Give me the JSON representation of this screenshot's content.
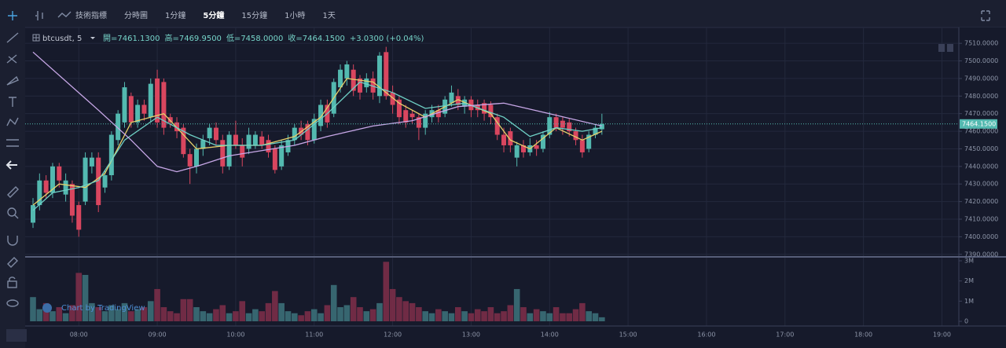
{
  "chart_data": {
    "type": "candlestick",
    "symbol": "btcusdt, 5",
    "toolbar": [
      "技術指標",
      "分時圖",
      "1分鐘",
      "5分鐘",
      "15分鐘",
      "1小時",
      "1天"
    ],
    "active_interval": "5分鐘",
    "legend_values": [
      "開=7461.1300",
      "高=7469.9500",
      "低=7458.0000",
      "收=7464.1500",
      "+3.0300 (+0.04%)"
    ],
    "watermark": "Chart by TradingView",
    "x_tick_labels": [
      "08:00",
      "09:00",
      "10:00",
      "11:00",
      "12:00",
      "13:00",
      "14:00",
      "15:00",
      "16:00",
      "17:00",
      "18:00",
      "19:00"
    ],
    "ylim": [
      7389,
      7519
    ],
    "yticks": [
      {
        "value": 7390,
        "label": "7390.0000"
      },
      {
        "value": 7400,
        "label": "7400.0000"
      },
      {
        "value": 7410,
        "label": "7410.0000"
      },
      {
        "value": 7420,
        "label": "7420.0000"
      },
      {
        "value": 7430,
        "label": "7430.0000"
      },
      {
        "value": 7440,
        "label": "7440.0000"
      },
      {
        "value": 7450,
        "label": "7450.0000"
      },
      {
        "value": 7460,
        "label": "7460.0000"
      },
      {
        "value": 7470,
        "label": "7470.0000"
      },
      {
        "value": 7480,
        "label": "7480.0000"
      },
      {
        "value": 7490,
        "label": "7490.0000"
      },
      {
        "value": 7500,
        "label": "7500.0000"
      },
      {
        "value": 7510,
        "label": "7510.0000"
      }
    ],
    "last_price": {
      "value": 7464.15,
      "label": "7464.1500"
    },
    "up_color": "#53b9b0",
    "down_color": "#d9465f",
    "ohlc": [
      [
        7408,
        7422,
        7405,
        7418
      ],
      [
        7418,
        7436,
        7415,
        7432
      ],
      [
        7432,
        7435,
        7422,
        7425
      ],
      [
        7425,
        7442,
        7422,
        7440
      ],
      [
        7440,
        7442,
        7428,
        7432
      ],
      [
        7424,
        7436,
        7420,
        7432
      ],
      [
        7430,
        7432,
        7408,
        7412
      ],
      [
        7418,
        7420,
        7400,
        7404
      ],
      [
        7420,
        7448,
        7418,
        7445
      ],
      [
        7440,
        7448,
        7436,
        7445
      ],
      [
        7445,
        7448,
        7414,
        7418
      ],
      [
        7428,
        7438,
        7425,
        7435
      ],
      [
        7435,
        7460,
        7432,
        7458
      ],
      [
        7455,
        7472,
        7452,
        7470
      ],
      [
        7465,
        7488,
        7462,
        7485
      ],
      [
        7480,
        7482,
        7462,
        7465
      ],
      [
        7465,
        7478,
        7462,
        7475
      ],
      [
        7475,
        7478,
        7466,
        7470
      ],
      [
        7468,
        7490,
        7465,
        7487
      ],
      [
        7490,
        7495,
        7462,
        7465
      ],
      [
        7488,
        7490,
        7458,
        7462
      ],
      [
        7468,
        7470,
        7462,
        7465
      ],
      [
        7465,
        7468,
        7456,
        7460
      ],
      [
        7462,
        7464,
        7445,
        7447
      ],
      [
        7447,
        7450,
        7430,
        7440
      ],
      [
        7440,
        7453,
        7436,
        7450
      ],
      [
        7450,
        7458,
        7446,
        7455
      ],
      [
        7456,
        7464,
        7452,
        7462
      ],
      [
        7462,
        7465,
        7452,
        7455
      ],
      [
        7455,
        7458,
        7436,
        7440
      ],
      [
        7440,
        7460,
        7438,
        7458
      ],
      [
        7458,
        7466,
        7450,
        7452
      ],
      [
        7452,
        7456,
        7440,
        7445
      ],
      [
        7450,
        7462,
        7447,
        7458
      ],
      [
        7452,
        7460,
        7450,
        7458
      ],
      [
        7457,
        7460,
        7450,
        7452
      ],
      [
        7455,
        7458,
        7445,
        7448
      ],
      [
        7450,
        7452,
        7436,
        7438
      ],
      [
        7440,
        7455,
        7438,
        7452
      ],
      [
        7448,
        7458,
        7446,
        7455
      ],
      [
        7455,
        7464,
        7452,
        7462
      ],
      [
        7462,
        7466,
        7455,
        7458
      ],
      [
        7464,
        7466,
        7452,
        7455
      ],
      [
        7455,
        7470,
        7453,
        7467
      ],
      [
        7463,
        7478,
        7460,
        7475
      ],
      [
        7475,
        7478,
        7462,
        7465
      ],
      [
        7470,
        7490,
        7468,
        7488
      ],
      [
        7485,
        7498,
        7482,
        7495
      ],
      [
        7490,
        7500,
        7486,
        7498
      ],
      [
        7495,
        7498,
        7480,
        7483
      ],
      [
        7490,
        7492,
        7478,
        7482
      ],
      [
        7485,
        7493,
        7482,
        7490
      ],
      [
        7490,
        7494,
        7478,
        7482
      ],
      [
        7480,
        7505,
        7476,
        7503
      ],
      [
        7505,
        7508,
        7478,
        7480
      ],
      [
        7482,
        7486,
        7470,
        7475
      ],
      [
        7478,
        7480,
        7464,
        7468
      ],
      [
        7472,
        7475,
        7462,
        7465
      ],
      [
        7470,
        7472,
        7464,
        7468
      ],
      [
        7468,
        7470,
        7455,
        7462
      ],
      [
        7462,
        7472,
        7458,
        7470
      ],
      [
        7468,
        7475,
        7465,
        7472
      ],
      [
        7472,
        7475,
        7465,
        7468
      ],
      [
        7470,
        7480,
        7468,
        7478
      ],
      [
        7476,
        7486,
        7474,
        7482
      ],
      [
        7480,
        7484,
        7472,
        7475
      ],
      [
        7474,
        7480,
        7470,
        7478
      ],
      [
        7478,
        7480,
        7468,
        7472
      ],
      [
        7475,
        7478,
        7468,
        7472
      ],
      [
        7476,
        7478,
        7466,
        7470
      ],
      [
        7475,
        7477,
        7464,
        7468
      ],
      [
        7468,
        7470,
        7455,
        7458
      ],
      [
        7458,
        7462,
        7448,
        7452
      ],
      [
        7460,
        7462,
        7448,
        7452
      ],
      [
        7445,
        7454,
        7440,
        7452
      ],
      [
        7452,
        7455,
        7445,
        7448
      ],
      [
        7448,
        7456,
        7446,
        7452
      ],
      [
        7452,
        7455,
        7446,
        7450
      ],
      [
        7450,
        7460,
        7448,
        7458
      ],
      [
        7458,
        7471,
        7456,
        7468
      ],
      [
        7468,
        7470,
        7460,
        7462
      ],
      [
        7466,
        7468,
        7458,
        7462
      ],
      [
        7465,
        7467,
        7457,
        7460
      ],
      [
        7460,
        7462,
        7452,
        7455
      ],
      [
        7455,
        7458,
        7445,
        7448
      ],
      [
        7450,
        7460,
        7448,
        7458
      ],
      [
        7458,
        7464,
        7456,
        7462
      ],
      [
        7461.13,
        7469.95,
        7458,
        7464.15
      ]
    ],
    "volume_ylim": [
      0,
      3000000
    ],
    "volume_yticks": [
      {
        "value": 0,
        "label": "0"
      },
      {
        "value": 1000000,
        "label": "1M"
      },
      {
        "value": 2000000,
        "label": "2M"
      },
      {
        "value": 3000000,
        "label": "3M"
      }
    ],
    "volume": [
      1200000,
      600000,
      900000,
      500000,
      700000,
      400000,
      800000,
      2400000,
      2300000,
      900000,
      700000,
      500000,
      800000,
      600000,
      900000,
      500000,
      600000,
      700000,
      1000000,
      1600000,
      700000,
      500000,
      400000,
      1100000,
      1100000,
      700000,
      500000,
      400000,
      600000,
      800000,
      400000,
      500000,
      1000000,
      400000,
      600000,
      500000,
      900000,
      1500000,
      900000,
      500000,
      400000,
      300000,
      500000,
      600000,
      400000,
      800000,
      1800000,
      700000,
      800000,
      1200000,
      700000,
      500000,
      600000,
      900000,
      2950000,
      1600000,
      1200000,
      1000000,
      900000,
      700000,
      500000,
      400000,
      600000,
      500000,
      400000,
      700000,
      500000,
      400000,
      600000,
      500000,
      700000,
      400000,
      500000,
      800000,
      1600000,
      700000,
      400000,
      600000,
      500000,
      400000,
      700000,
      400000,
      400000,
      600000,
      900000,
      500000,
      400000,
      200000
    ],
    "ma_series": [
      {
        "color": "#e7d16b",
        "x": [
          0,
          4,
          8,
          11,
          15,
          20,
          25,
          30,
          35,
          40,
          44,
          48,
          52,
          56,
          60,
          65,
          70,
          73,
          76,
          80,
          84,
          87
        ],
        "values": [
          7418,
          7430,
          7428,
          7436,
          7465,
          7470,
          7450,
          7452,
          7452,
          7457,
          7468,
          7490,
          7488,
          7476,
          7468,
          7478,
          7470,
          7455,
          7450,
          7462,
          7455,
          7460
        ]
      },
      {
        "color": "#6fd1c6",
        "x": [
          0,
          3,
          7,
          10,
          14,
          19,
          24,
          28,
          35,
          40,
          45,
          50,
          55,
          60,
          66,
          72,
          76,
          80,
          84,
          87
        ],
        "values": [
          7415,
          7425,
          7428,
          7432,
          7455,
          7468,
          7458,
          7452,
          7452,
          7455,
          7470,
          7488,
          7482,
          7473,
          7476,
          7468,
          7457,
          7462,
          7460,
          7462
        ]
      },
      {
        "color": "#c8a8e8",
        "x": [
          0,
          10,
          15,
          19,
          22,
          25,
          30,
          40,
          45,
          52,
          58,
          65,
          72,
          79,
          87
        ],
        "values": [
          7505,
          7472,
          7455,
          7440,
          7437,
          7440,
          7446,
          7452,
          7457,
          7463,
          7466,
          7474,
          7476,
          7470,
          7463
        ]
      }
    ]
  }
}
